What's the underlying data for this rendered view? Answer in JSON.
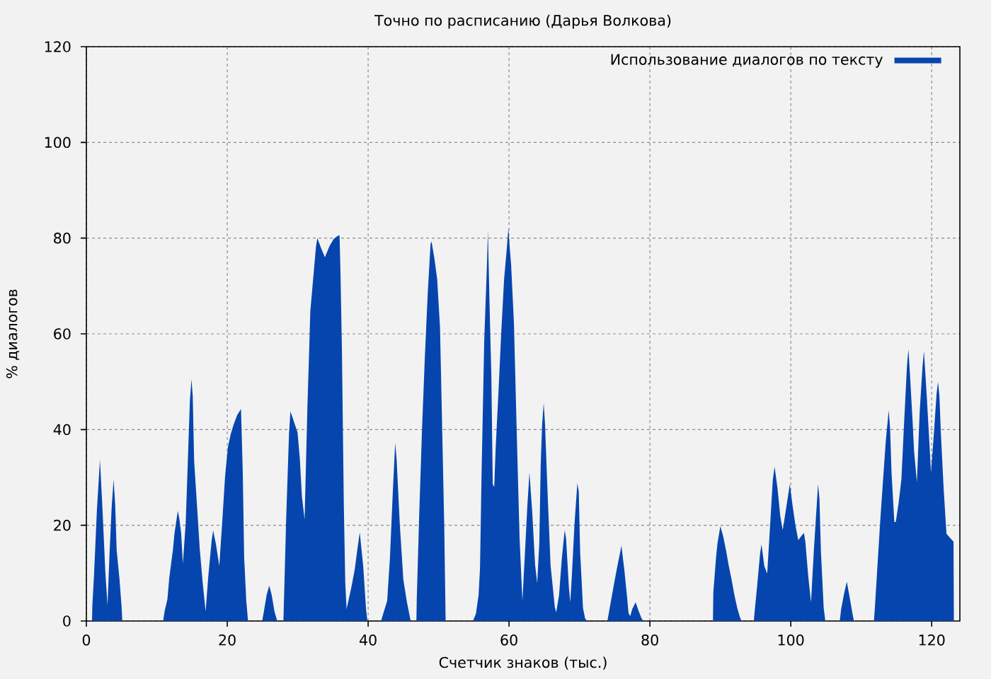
{
  "chart_data": {
    "type": "area",
    "title": "Точно по расписанию (Дарья Волкова)",
    "xlabel": "Счетчик знаков (тыс.)",
    "ylabel": "% диалогов",
    "series": [
      {
        "name": "Использование диалогов по тексту",
        "color": "#0645ad",
        "x": [
          0.8,
          0.85,
          1.1,
          1.5,
          1.93,
          2.3,
          2.7,
          3.0,
          3.3,
          3.6,
          3.87,
          4.1,
          4.3,
          4.7,
          5.0,
          5.1,
          10.9,
          11.1,
          11.5,
          11.77,
          12.3,
          12.5,
          12.98,
          13.2,
          13.45,
          13.7,
          14.1,
          14.3,
          14.5,
          14.7,
          14.92,
          15.1,
          15.3,
          15.6,
          16.1,
          16.5,
          16.93,
          17.3,
          17.8,
          18.0,
          18.4,
          18.87,
          19.3,
          19.7,
          20.1,
          20.5,
          20.9,
          21.4,
          21.95,
          22.2,
          22.4,
          22.7,
          22.95,
          24.96,
          25.2,
          25.6,
          25.96,
          26.3,
          26.7,
          27.1,
          27.97,
          28.05,
          28.37,
          28.77,
          28.97,
          29.5,
          29.98,
          30.3,
          30.6,
          30.98,
          31.18,
          31.38,
          31.59,
          31.79,
          32.19,
          32.6,
          32.79,
          33.3,
          33.86,
          34.5,
          35.1,
          35.6,
          35.94,
          36.08,
          36.28,
          36.55,
          36.75,
          36.94,
          37.6,
          38.1,
          38.5,
          38.81,
          39.3,
          39.7,
          39.9,
          41.83,
          42.3,
          42.7,
          43.1,
          43.5,
          43.84,
          44.04,
          44.5,
          45.0,
          45.5,
          46.04,
          46.85,
          46.9,
          47.25,
          47.65,
          48.05,
          48.46,
          48.86,
          49.0,
          49.4,
          49.8,
          50.2,
          50.4,
          50.6,
          50.8,
          51.0,
          54.88,
          55.3,
          55.68,
          55.88,
          56.08,
          56.48,
          56.89,
          57.0,
          57.1,
          57.29,
          57.49,
          57.69,
          57.9,
          58.1,
          58.5,
          58.9,
          59.3,
          59.7,
          59.9,
          60.1,
          60.3,
          60.7,
          61.1,
          61.5,
          61.9,
          62.3,
          62.6,
          62.9,
          63.3,
          63.7,
          64.0,
          64.3,
          64.5,
          64.7,
          64.92,
          65.1,
          65.5,
          65.9,
          66.5,
          66.7,
          67.1,
          67.5,
          67.9,
          68.1,
          68.5,
          68.7,
          68.9,
          69.3,
          69.7,
          69.9,
          70.1,
          70.3,
          70.5,
          70.8,
          71.1,
          73.96,
          74.56,
          74.96,
          75.36,
          75.96,
          76.36,
          76.76,
          76.96,
          77.2,
          77.5,
          77.97,
          78.37,
          78.77,
          79.04,
          88.95,
          89.0,
          89.4,
          89.6,
          90.0,
          90.4,
          90.8,
          91.2,
          91.6,
          92.0,
          92.4,
          92.8,
          93.0,
          94.75,
          94.84,
          95.24,
          95.64,
          95.84,
          96.24,
          96.65,
          97.05,
          97.45,
          97.7,
          98.1,
          98.5,
          98.85,
          99.25,
          99.86,
          100.26,
          100.66,
          101.06,
          101.46,
          101.87,
          102.07,
          102.47,
          102.87,
          103.27,
          103.87,
          104.07,
          104.27,
          104.67,
          104.9,
          106.95,
          107.15,
          107.55,
          107.95,
          108.35,
          108.76,
          108.96,
          111.8,
          111.9,
          112.3,
          112.7,
          113.1,
          113.5,
          113.9,
          114.1,
          114.3,
          114.7,
          114.9,
          115.3,
          115.7,
          116.1,
          116.5,
          116.7,
          116.9,
          117.3,
          117.5,
          117.9,
          118.3,
          118.7,
          118.9,
          119.3,
          119.7,
          119.9,
          120.3,
          120.7,
          120.9,
          121.1,
          121.3,
          121.7,
          122.1,
          122.7,
          123.1,
          123.15
        ],
        "values": [
          0,
          3.3,
          10,
          23.3,
          33.7,
          23,
          10,
          3.3,
          14.5,
          24,
          29.6,
          24,
          14.8,
          8.8,
          3,
          0,
          0,
          2,
          4.5,
          9,
          15,
          18.2,
          23,
          21.4,
          18.4,
          12,
          20.4,
          28.9,
          37.5,
          46.1,
          50.5,
          47,
          33.4,
          26.6,
          15,
          8.2,
          2,
          9.2,
          17,
          18.9,
          16,
          11.5,
          21,
          30.4,
          36.4,
          39.1,
          41,
          43,
          44.3,
          31.2,
          13.3,
          4.2,
          0,
          0,
          2,
          5.5,
          7.4,
          5.5,
          2,
          0,
          0,
          4.2,
          21.6,
          39.2,
          43.8,
          41.5,
          39.4,
          34,
          26,
          21.2,
          33,
          44.8,
          54.7,
          64.7,
          71.4,
          78.3,
          80,
          78,
          76,
          78.3,
          79.8,
          80.4,
          80.6,
          72.4,
          56.5,
          24.1,
          8.1,
          2.5,
          6.9,
          10.8,
          15.3,
          18.5,
          11.5,
          2.5,
          0,
          0,
          2.3,
          4.2,
          13.3,
          26.9,
          37.2,
          33.8,
          20,
          8.6,
          4,
          0,
          0,
          4.4,
          22.2,
          40.1,
          55.1,
          68.5,
          78.8,
          79.3,
          75.8,
          71.4,
          61.4,
          47.8,
          34,
          20.2,
          0,
          0,
          1.5,
          5.4,
          11,
          29,
          58.6,
          75.4,
          81.6,
          75,
          62.6,
          51.5,
          28.6,
          28,
          36,
          47.8,
          60.4,
          71.4,
          78.1,
          82.1,
          78,
          74.4,
          62.1,
          39,
          17.2,
          4.2,
          15.3,
          24,
          31,
          22.6,
          11.7,
          7.9,
          16.3,
          32.8,
          41,
          45.5,
          41.4,
          25.8,
          11.6,
          2.9,
          1.8,
          5.4,
          13.1,
          19,
          17.2,
          6.9,
          3.9,
          8.9,
          20.4,
          28.8,
          27,
          14.3,
          8.6,
          2.7,
          0.5,
          0,
          0,
          4.9,
          8.2,
          11.3,
          15.7,
          10.8,
          5,
          1.7,
          1,
          2.5,
          3.9,
          2.2,
          0.7,
          0,
          0,
          5.9,
          13.5,
          16.3,
          19.8,
          17.7,
          14.8,
          11.5,
          8.6,
          5.4,
          2.7,
          0.7,
          0,
          0,
          1.5,
          7.6,
          14.1,
          16,
          11.5,
          9.9,
          19.7,
          29.6,
          32.2,
          27.9,
          22,
          19,
          22.7,
          28.6,
          24,
          20,
          16.9,
          17.7,
          18.4,
          16.5,
          9.4,
          3.9,
          14.7,
          28.6,
          25.5,
          14.7,
          2.7,
          0,
          0,
          2.5,
          5.6,
          8.2,
          5,
          1.5,
          0,
          0,
          2,
          11.5,
          21,
          29.6,
          37.9,
          44,
          40.1,
          31,
          20.7,
          20.7,
          24.6,
          29.6,
          41.9,
          53.5,
          56.8,
          52,
          41.4,
          35.5,
          29,
          43.8,
          53.2,
          56.4,
          47,
          36.5,
          31,
          38.9,
          47.6,
          50,
          47,
          39.4,
          27.6,
          18.2,
          17.2,
          16.6,
          0
        ]
      }
    ],
    "xlim": [
      0,
      124
    ],
    "ylim": [
      0,
      120
    ],
    "xticks": [
      0,
      20,
      40,
      60,
      80,
      100,
      120
    ],
    "yticks": [
      0,
      20,
      40,
      60,
      80,
      100,
      120
    ],
    "grid": true,
    "legend": "top right"
  }
}
